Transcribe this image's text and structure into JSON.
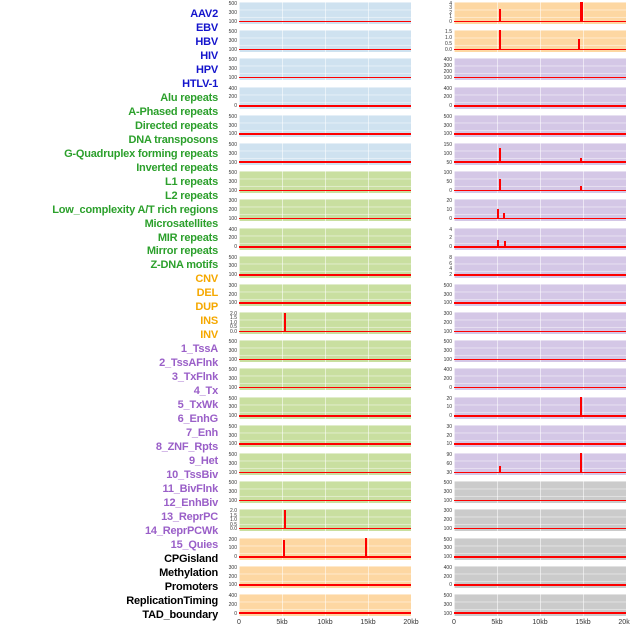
{
  "chart_data": {
    "type": "line",
    "title": "",
    "description": "Small-multiple signal profiles (red) of genomic features across a 20kb window, two panel columns sharing one x axis scale",
    "x_ticks": [
      "0",
      "5kb",
      "10kb",
      "15kb",
      "20kb"
    ],
    "x_range_kb": [
      0,
      20
    ],
    "grid": true,
    "legend_position": "none",
    "signal_color": "#fe0000",
    "categories": {
      "virus": {
        "label_color": "#1414cc",
        "panel_bg": "#cfe2f0"
      },
      "repeat": {
        "label_color": "#2ca02c",
        "panel_bg": "#c9dfa0"
      },
      "sv": {
        "label_color": "#f5a800",
        "panel_bg": "#fdd7a2"
      },
      "chromatin": {
        "label_color": "#9a5fc8",
        "panel_bg": "#d4c7e6"
      },
      "other": {
        "label_color": "#000000",
        "panel_bg": "#cbcbcb"
      }
    },
    "columns": [
      {
        "name": "left",
        "panels": [
          {
            "label": "AAV2",
            "category": "virus",
            "y_ticks": [
              "500",
              "300",
              "100"
            ],
            "spikes": []
          },
          {
            "label": "EBV",
            "category": "virus",
            "y_ticks": [
              "500",
              "300",
              "100"
            ],
            "spikes": []
          },
          {
            "label": "HBV",
            "category": "virus",
            "y_ticks": [
              "500",
              "300",
              "100"
            ],
            "spikes": []
          },
          {
            "label": "HIV",
            "category": "virus",
            "y_ticks": [
              "400",
              "200",
              "0"
            ],
            "spikes": []
          },
          {
            "label": "HPV",
            "category": "virus",
            "y_ticks": [
              "500",
              "300",
              "100"
            ],
            "spikes": []
          },
          {
            "label": "HTLV-1",
            "category": "virus",
            "y_ticks": [
              "500",
              "300",
              "100"
            ],
            "spikes": []
          },
          {
            "label": "Alu repeats",
            "category": "repeat",
            "y_ticks": [
              "500",
              "300",
              "100"
            ],
            "spikes": []
          },
          {
            "label": "A-Phased repeats",
            "category": "repeat",
            "y_ticks": [
              "300",
              "200",
              "100"
            ],
            "spikes": []
          },
          {
            "label": "Directed repeats",
            "category": "repeat",
            "y_ticks": [
              "400",
              "200",
              "0"
            ],
            "spikes": []
          },
          {
            "label": "DNA transposons",
            "category": "repeat",
            "y_ticks": [
              "500",
              "300",
              "100"
            ],
            "spikes": []
          },
          {
            "label": "G-Quadruplex forming repeats",
            "category": "repeat",
            "y_ticks": [
              "300",
              "200",
              "100"
            ],
            "spikes": []
          },
          {
            "label": "Inverted repeats",
            "category": "repeat",
            "y_ticks": [
              "2.0",
              "1.5",
              "1.0",
              "0.5",
              "0.0"
            ],
            "spikes": [
              {
                "x_kb": 5,
                "x": 0.26,
                "h": 0.85
              }
            ]
          },
          {
            "label": "L1 repeats",
            "category": "repeat",
            "y_ticks": [
              "500",
              "300",
              "100"
            ],
            "spikes": []
          },
          {
            "label": "L2 repeats",
            "category": "repeat",
            "y_ticks": [
              "500",
              "300",
              "100"
            ],
            "spikes": []
          },
          {
            "label": "Low_complexity A/T rich regions",
            "category": "repeat",
            "y_ticks": [
              "500",
              "300",
              "100"
            ],
            "spikes": []
          },
          {
            "label": "Microsatellites",
            "category": "repeat",
            "y_ticks": [
              "500",
              "300",
              "100"
            ],
            "spikes": []
          },
          {
            "label": "MIR repeats",
            "category": "repeat",
            "y_ticks": [
              "500",
              "300",
              "100"
            ],
            "spikes": []
          },
          {
            "label": "Mirror repeats",
            "category": "repeat",
            "y_ticks": [
              "500",
              "300",
              "100"
            ],
            "spikes": []
          },
          {
            "label": "Z-DNA motifs",
            "category": "repeat",
            "y_ticks": [
              "2.0",
              "1.5",
              "1.0",
              "0.5",
              "0.0"
            ],
            "spikes": [
              {
                "x_kb": 5,
                "x": 0.26,
                "h": 0.88
              }
            ]
          },
          {
            "label": "CNV",
            "category": "sv",
            "y_ticks": [
              "200",
              "100",
              "0"
            ],
            "spikes": [
              {
                "x_kb": 5,
                "x": 0.255,
                "h": 0.78
              },
              {
                "x_kb": 15,
                "x": 0.735,
                "h": 0.95
              }
            ]
          },
          {
            "label": "DEL",
            "category": "sv",
            "y_ticks": [
              "300",
              "200",
              "100"
            ],
            "spikes": []
          },
          {
            "label": "DUP",
            "category": "sv",
            "y_ticks": [
              "400",
              "200",
              "0"
            ],
            "spikes": []
          }
        ]
      },
      {
        "name": "right",
        "panels": [
          {
            "label": "INS",
            "category": "sv",
            "y_ticks": [
              "4",
              "3",
              "2",
              "1",
              "0"
            ],
            "spikes": [
              {
                "x_kb": 5,
                "x": 0.26,
                "h": 0.6
              },
              {
                "x_kb": 15,
                "x": 0.73,
                "h": 0.95,
                "w": 3
              }
            ]
          },
          {
            "label": "INV",
            "category": "sv",
            "y_ticks": [
              "1.5",
              "1.0",
              "0.5",
              "0.0"
            ],
            "spikes": [
              {
                "x_kb": 5,
                "x": 0.26,
                "h": 0.9
              },
              {
                "x_kb": 15,
                "x": 0.72,
                "h": 0.5
              }
            ]
          },
          {
            "label": "1_TssA",
            "category": "chromatin",
            "y_ticks": [
              "400",
              "300",
              "200",
              "100"
            ],
            "spikes": []
          },
          {
            "label": "2_TssAFlnk",
            "category": "chromatin",
            "y_ticks": [
              "400",
              "200",
              "0"
            ],
            "spikes": []
          },
          {
            "label": "3_TxFlnk",
            "category": "chromatin",
            "y_ticks": [
              "500",
              "300",
              "100"
            ],
            "spikes": []
          },
          {
            "label": "4_Tx",
            "category": "chromatin",
            "y_ticks": [
              "150",
              "100",
              "50"
            ],
            "spikes": [
              {
                "x_kb": 5,
                "x": 0.26,
                "h": 0.7
              },
              {
                "x_kb": 15,
                "x": 0.73,
                "h": 0.22
              }
            ]
          },
          {
            "label": "5_TxWk",
            "category": "chromatin",
            "y_ticks": [
              "100",
              "50",
              "0"
            ],
            "spikes": [
              {
                "x_kb": 5,
                "x": 0.26,
                "h": 0.55
              },
              {
                "x_kb": 15,
                "x": 0.73,
                "h": 0.22
              }
            ]
          },
          {
            "label": "6_EnhG",
            "category": "chromatin",
            "y_ticks": [
              "20",
              "10",
              "0"
            ],
            "spikes": [
              {
                "x_kb": 4.9,
                "x": 0.25,
                "h": 0.45
              },
              {
                "x_kb": 5.6,
                "x": 0.285,
                "h": 0.28
              }
            ]
          },
          {
            "label": "7_Enh",
            "category": "chromatin",
            "y_ticks": [
              "4",
              "2",
              "0"
            ],
            "spikes": [
              {
                "x_kb": 4.9,
                "x": 0.25,
                "h": 0.34
              },
              {
                "x_kb": 5.8,
                "x": 0.29,
                "h": 0.28
              }
            ]
          },
          {
            "label": "8_ZNF_Rpts",
            "category": "chromatin",
            "y_ticks": [
              "8",
              "6",
              "4",
              "2"
            ],
            "spikes": []
          },
          {
            "label": "9_Het",
            "category": "chromatin",
            "y_ticks": [
              "500",
              "300",
              "100"
            ],
            "spikes": []
          },
          {
            "label": "10_TssBiv",
            "category": "chromatin",
            "y_ticks": [
              "300",
              "200",
              "100"
            ],
            "spikes": []
          },
          {
            "label": "11_BivFlnk",
            "category": "chromatin",
            "y_ticks": [
              "500",
              "300",
              "100"
            ],
            "spikes": []
          },
          {
            "label": "12_EnhBiv",
            "category": "chromatin",
            "y_ticks": [
              "400",
              "200",
              "0"
            ],
            "spikes": []
          },
          {
            "label": "13_ReprPC",
            "category": "chromatin",
            "y_ticks": [
              "20",
              "10",
              "0"
            ],
            "spikes": [
              {
                "x_kb": 15,
                "x": 0.73,
                "h": 0.93
              }
            ]
          },
          {
            "label": "14_ReprPCWk",
            "category": "chromatin",
            "y_ticks": [
              "30",
              "20",
              "10"
            ],
            "spikes": []
          },
          {
            "label": "15_Quies",
            "category": "chromatin",
            "y_ticks": [
              "90",
              "60",
              "30"
            ],
            "spikes": [
              {
                "x_kb": 5,
                "x": 0.26,
                "h": 0.32
              },
              {
                "x_kb": 15,
                "x": 0.73,
                "h": 0.9
              }
            ]
          },
          {
            "label": "CPGisland",
            "category": "other",
            "y_ticks": [
              "500",
              "300",
              "100"
            ],
            "spikes": []
          },
          {
            "label": "Methylation",
            "category": "other",
            "y_ticks": [
              "300",
              "200",
              "100"
            ],
            "spikes": []
          },
          {
            "label": "Promoters",
            "category": "other",
            "y_ticks": [
              "500",
              "300",
              "100"
            ],
            "spikes": []
          },
          {
            "label": "ReplicationTiming",
            "category": "other",
            "y_ticks": [
              "400",
              "200",
              "0"
            ],
            "spikes": []
          },
          {
            "label": "TAD_boundary",
            "category": "other",
            "y_ticks": [
              "500",
              "300",
              "100"
            ],
            "spikes": []
          }
        ]
      }
    ]
  }
}
